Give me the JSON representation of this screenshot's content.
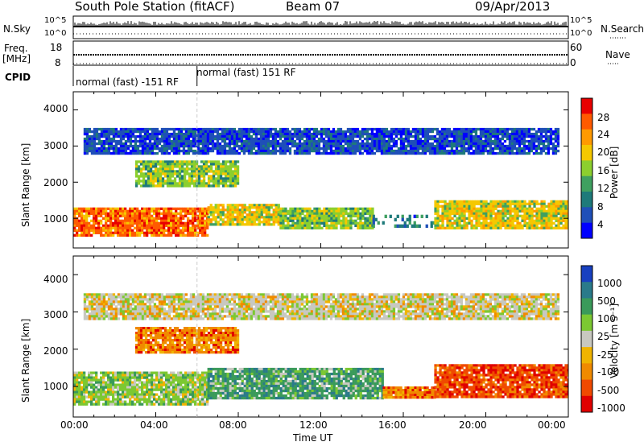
{
  "header": {
    "title": "South Pole Station (fitACF)",
    "beam": "Beam 07",
    "date": "09/Apr/2013"
  },
  "top_strips": {
    "nsky_label": "N.Sky",
    "nsky_ticks": [
      "10^5",
      "10^0"
    ],
    "nsearch_label": "N.Search",
    "freq_label_1": "Freq.",
    "freq_label_2": "[MHz]",
    "freq_ticks": [
      "18",
      "8"
    ],
    "nave_label": "Nave",
    "nave_ticks": [
      "60",
      "0"
    ],
    "cpid_label": "CPID",
    "cpid_segments": [
      {
        "label": "normal (fast) -151 RF",
        "start_hour": 0,
        "end_hour": 6
      },
      {
        "label": "normal (fast) 151 RF",
        "start_hour": 6,
        "end_hour": 24
      }
    ]
  },
  "axes": {
    "y_label": "Slant Range [km]",
    "y_ticks": [
      "4000",
      "3000",
      "2000",
      "1000"
    ],
    "x_label": "Time UT",
    "x_ticks": [
      "00:00",
      "04:00",
      "08:00",
      "12:00",
      "16:00",
      "20:00",
      "00:00"
    ]
  },
  "colorbars": {
    "power": {
      "label": "Power [dB]",
      "ticks": [
        "28",
        "24",
        "20",
        "16",
        "12",
        "8",
        "4"
      ],
      "colors": [
        "#e80000",
        "#ff5a00",
        "#ff9a00",
        "#f5c800",
        "#8ccf2e",
        "#3fa060",
        "#1e7a7a",
        "#1f4fb8",
        "#0000ff"
      ]
    },
    "velocity": {
      "label": "Velocity [m s⁻¹]",
      "ticks": [
        "1000",
        "500",
        "100",
        "25",
        "-25",
        "-100",
        "-500",
        "-1000"
      ],
      "colors": [
        "#1840c0",
        "#2a7a8a",
        "#3a9a5a",
        "#7cc832",
        "#c8c8c0",
        "#f0b400",
        "#f08a00",
        "#f04a00",
        "#e00000"
      ]
    }
  },
  "chart_data": [
    {
      "type": "heatmap",
      "name": "power",
      "xlabel": "Time UT",
      "ylabel": "Slant Range [km]",
      "xlim": [
        0,
        24
      ],
      "ylim": [
        180,
        4500
      ],
      "colorbar": "Power [dB]",
      "colorbar_ticks": [
        28,
        24,
        20,
        16,
        12,
        8,
        4
      ],
      "bands": [
        {
          "x0": 0.0,
          "x1": 6.5,
          "y0": 500,
          "y1": 1300,
          "value": 28
        },
        {
          "x0": 6.5,
          "x1": 10.0,
          "y0": 800,
          "y1": 1400,
          "value": 20
        },
        {
          "x0": 10.0,
          "x1": 14.5,
          "y0": 700,
          "y1": 1300,
          "value": 16
        },
        {
          "x0": 14.5,
          "x1": 17.5,
          "y0": 800,
          "y1": 1100,
          "value": 8
        },
        {
          "x0": 17.5,
          "x1": 24.0,
          "y0": 700,
          "y1": 1500,
          "value": 20
        },
        {
          "x0": 3.0,
          "x1": 8.0,
          "y0": 1900,
          "y1": 2600,
          "value": 16
        },
        {
          "x0": 0.5,
          "x1": 23.5,
          "y0": 2800,
          "y1": 3500,
          "value": 4
        }
      ]
    },
    {
      "type": "heatmap",
      "name": "velocity",
      "xlabel": "Time UT",
      "ylabel": "Slant Range [km]",
      "xlim": [
        0,
        24
      ],
      "ylim": [
        180,
        4500
      ],
      "colorbar": "Velocity [m s⁻¹]",
      "colorbar_ticks": [
        1000,
        500,
        100,
        25,
        -25,
        -100,
        -500,
        -1000
      ],
      "bands": [
        {
          "x0": 0.0,
          "x1": 6.5,
          "y0": 500,
          "y1": 1400,
          "value": 100
        },
        {
          "x0": 6.5,
          "x1": 15.0,
          "y0": 700,
          "y1": 1500,
          "value": 500
        },
        {
          "x0": 15.0,
          "x1": 17.5,
          "y0": 700,
          "y1": 1000,
          "value": -100
        },
        {
          "x0": 17.5,
          "x1": 24.0,
          "y0": 700,
          "y1": 1600,
          "value": -500
        },
        {
          "x0": 3.0,
          "x1": 8.0,
          "y0": 1900,
          "y1": 2600,
          "value": -100
        },
        {
          "x0": 0.5,
          "x1": 23.5,
          "y0": 2800,
          "y1": 3500,
          "value": 25
        }
      ]
    }
  ]
}
